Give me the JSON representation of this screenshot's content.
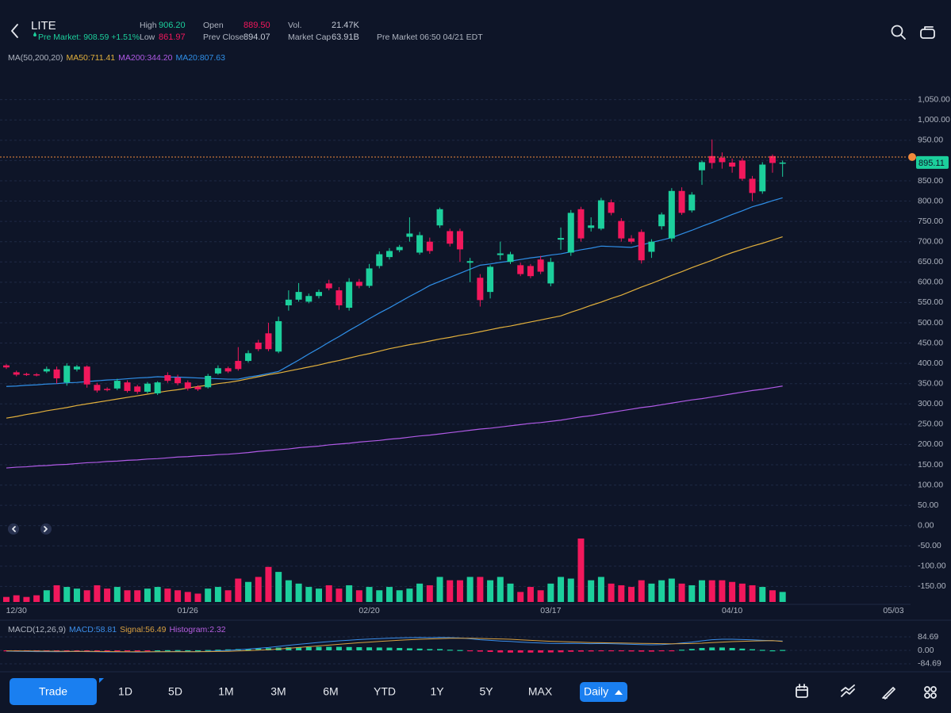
{
  "header": {
    "symbol": "LITE",
    "pre_market_label": "Pre Market:",
    "pre_market_price": 908.59,
    "pre_market_change": "+1.51%",
    "stats": [
      {
        "label": "High",
        "value": "906.20"
      },
      {
        "label": "Low",
        "value": "861.97"
      },
      {
        "label": "Open",
        "value": "889.50"
      },
      {
        "label": "Prev Close",
        "value": "894.07"
      },
      {
        "label": "Vol.",
        "value": "21.47K"
      },
      {
        "label": "Market Cap",
        "value": "63.91B"
      }
    ],
    "pre_market_time": "Pre Market 06:50 04/21 EDT"
  },
  "chart_data": [
    {
      "type": "candlestick",
      "indicator_label": "MA(50,200,20)",
      "up_color": "#1ccf9c",
      "down_color": "#f2185c",
      "last_price": 895.11,
      "grid": true,
      "ylim": [
        -200,
        1110
      ],
      "yticks": [
        {
          "value": -150,
          "label": "-150.00"
        },
        {
          "value": -100,
          "label": "-100.00"
        },
        {
          "value": -50,
          "label": "-50.00"
        },
        {
          "value": 0,
          "label": "0.00"
        },
        {
          "value": 50,
          "label": "50.00"
        },
        {
          "value": 100,
          "label": "100.00"
        },
        {
          "value": 150,
          "label": "150.00"
        },
        {
          "value": 200,
          "label": "200.00"
        },
        {
          "value": 250,
          "label": "250.00"
        },
        {
          "value": 300,
          "label": "300.00"
        },
        {
          "value": 350,
          "label": "350.00"
        },
        {
          "value": 400,
          "label": "400.00"
        },
        {
          "value": 450,
          "label": "450.00"
        },
        {
          "value": 500,
          "label": "500.00"
        },
        {
          "value": 550,
          "label": "550.00"
        },
        {
          "value": 600,
          "label": "600.00"
        },
        {
          "value": 650,
          "label": "650.00"
        },
        {
          "value": 700,
          "label": "700.00"
        },
        {
          "value": 750,
          "label": "750.00"
        },
        {
          "value": 800,
          "label": "800.00"
        },
        {
          "value": 850,
          "label": "850.00"
        },
        {
          "value": 900,
          "label": "900.00"
        },
        {
          "value": 950,
          "label": "950.00"
        },
        {
          "value": 1000,
          "label": "1,000.00"
        },
        {
          "value": 1050,
          "label": "1,050.00"
        }
      ],
      "categories": [
        null,
        "12/30",
        null,
        null,
        null,
        null,
        null,
        null,
        null,
        null,
        null,
        null,
        null,
        null,
        null,
        null,
        null,
        null,
        "01/26",
        null,
        null,
        null,
        null,
        null,
        null,
        null,
        null,
        null,
        null,
        null,
        null,
        null,
        null,
        null,
        null,
        null,
        "02/20",
        null,
        null,
        null,
        null,
        null,
        null,
        null,
        null,
        null,
        null,
        null,
        null,
        null,
        null,
        null,
        null,
        null,
        "03/17",
        null,
        null,
        null,
        null,
        null,
        null,
        null,
        null,
        null,
        null,
        null,
        null,
        null,
        null,
        null,
        null,
        null,
        "04/10",
        null,
        null,
        null,
        null,
        null,
        null,
        null,
        null,
        null,
        null,
        null,
        null,
        null,
        null,
        null,
        "05/03",
        null
      ],
      "open": [
        395,
        378,
        374,
        373,
        380,
        385,
        353,
        385,
        392,
        347,
        337,
        338,
        353,
        343,
        330,
        326,
        371,
        365,
        353,
        342,
        341,
        375,
        388,
        406,
        406,
        451,
        474,
        429,
        543,
        557,
        552,
        566,
        597,
        580,
        537,
        601,
        591,
        640,
        662,
        679,
        712,
        673,
        700,
        740,
        726,
        726,
        648,
        611,
        576,
        667,
        650,
        642,
        640,
        656,
        597,
        705,
        673,
        780,
        734,
        732,
        797,
        751,
        708,
        724,
        675,
        738,
        708,
        825,
        777,
        876,
        911,
        907,
        895,
        900,
        855,
        824,
        911,
        894,
        null,
        null,
        null,
        null,
        null,
        null,
        null,
        null,
        null,
        null,
        null,
        null
      ],
      "high": [
        398,
        382,
        377,
        376,
        392,
        392,
        400,
        396,
        395,
        352,
        341,
        362,
        358,
        347,
        354,
        356,
        378,
        372,
        358,
        346,
        374,
        395,
        392,
        440,
        432,
        458,
        500,
        515,
        580,
        598,
        572,
        582,
        606,
        588,
        610,
        608,
        645,
        676,
        684,
        692,
        760,
        724,
        710,
        784,
        732,
        732,
        660,
        620,
        642,
        700,
        675,
        648,
        645,
        665,
        660,
        735,
        778,
        786,
        760,
        808,
        804,
        758,
        716,
        730,
        706,
        772,
        832,
        834,
        822,
        900,
        952,
        920,
        905,
        906,
        862,
        896,
        915,
        900,
        null,
        null,
        null,
        null,
        null,
        null,
        null,
        null,
        null,
        null,
        null,
        null
      ],
      "low": [
        386,
        368,
        369,
        368,
        376,
        350,
        345,
        380,
        340,
        328,
        331,
        334,
        328,
        325,
        326,
        322,
        352,
        346,
        333,
        332,
        338,
        372,
        376,
        382,
        402,
        430,
        430,
        425,
        530,
        552,
        548,
        560,
        580,
        532,
        530,
        585,
        586,
        634,
        656,
        674,
        700,
        668,
        670,
        734,
        688,
        650,
        600,
        540,
        560,
        655,
        645,
        615,
        610,
        620,
        590,
        680,
        665,
        700,
        725,
        728,
        765,
        700,
        695,
        646,
        660,
        730,
        700,
        766,
        772,
        840,
        880,
        880,
        870,
        850,
        800,
        818,
        870,
        860,
        null,
        null,
        null,
        null,
        null,
        null,
        null,
        null,
        null,
        null,
        null,
        null
      ],
      "close": [
        390,
        372,
        372,
        371,
        386,
        363,
        394,
        392,
        348,
        333,
        335,
        357,
        332,
        330,
        350,
        353,
        357,
        351,
        338,
        336,
        369,
        388,
        380,
        386,
        425,
        435,
        435,
        504,
        557,
        576,
        566,
        576,
        585,
        543,
        601,
        591,
        634,
        669,
        677,
        687,
        720,
        716,
        677,
        780,
        695,
        681,
        652,
        556,
        638,
        671,
        669,
        620,
        615,
        626,
        650,
        709,
        771,
        708,
        740,
        802,
        771,
        708,
        700,
        654,
        700,
        767,
        825,
        771,
        816,
        896,
        894,
        896,
        885,
        855,
        820,
        890,
        894,
        895,
        null,
        null,
        null,
        null,
        null,
        null,
        null,
        null,
        null,
        null,
        null,
        null
      ],
      "volume": [
        6,
        8,
        6,
        8,
        14,
        20,
        18,
        16,
        14,
        20,
        16,
        18,
        14,
        14,
        16,
        18,
        16,
        14,
        12,
        10,
        16,
        18,
        14,
        28,
        24,
        30,
        42,
        36,
        26,
        22,
        18,
        16,
        20,
        16,
        20,
        14,
        18,
        14,
        18,
        14,
        16,
        22,
        20,
        30,
        26,
        26,
        30,
        30,
        26,
        30,
        22,
        12,
        18,
        14,
        22,
        30,
        28,
        76,
        26,
        30,
        22,
        20,
        18,
        26,
        22,
        26,
        28,
        22,
        20,
        26,
        26,
        26,
        24,
        22,
        20,
        18,
        14,
        12,
        null,
        null,
        null,
        null,
        null,
        null,
        null,
        null,
        null,
        null,
        null,
        null
      ],
      "series": [
        {
          "name": "MA50:711.41",
          "color": "#e2b03c",
          "values": [
            265,
            269,
            274,
            278,
            283,
            287,
            291,
            296,
            300,
            304,
            308,
            312,
            316,
            320,
            324,
            328,
            332,
            335,
            339,
            343,
            346,
            350,
            353,
            357,
            362,
            367,
            372,
            376,
            381,
            386,
            391,
            396,
            402,
            407,
            413,
            419,
            424,
            430,
            436,
            441,
            446,
            450,
            455,
            460,
            464,
            469,
            473,
            478,
            483,
            488,
            492,
            497,
            502,
            507,
            512,
            517,
            526,
            534,
            543,
            551,
            560,
            568,
            578,
            588,
            597,
            607,
            617,
            626,
            636,
            645,
            654,
            664,
            673,
            681,
            689,
            696,
            704,
            712,
            null,
            null,
            null,
            null,
            null,
            null,
            null,
            null,
            null,
            null,
            null,
            null
          ]
        },
        {
          "name": "MA200:344.20",
          "color": "#b05ae6",
          "values": [
            142,
            144,
            145,
            147,
            148,
            150,
            151,
            153,
            155,
            156,
            158,
            159,
            161,
            162,
            164,
            165,
            167,
            169,
            170,
            172,
            173,
            175,
            176,
            178,
            180,
            183,
            185,
            187,
            189,
            192,
            194,
            196,
            199,
            201,
            203,
            206,
            208,
            210,
            213,
            215,
            218,
            221,
            223,
            226,
            229,
            232,
            235,
            238,
            240,
            243,
            246,
            249,
            252,
            254,
            257,
            260,
            264,
            268,
            271,
            275,
            279,
            283,
            287,
            291,
            294,
            298,
            302,
            306,
            310,
            313,
            317,
            321,
            325,
            329,
            333,
            336,
            340,
            344,
            null,
            null,
            null,
            null,
            null,
            null,
            null,
            null,
            null,
            null,
            null,
            null
          ]
        },
        {
          "name": "MA20:807.63",
          "color": "#2f8fe8",
          "values": [
            343,
            344,
            346,
            347,
            349,
            350,
            352,
            353,
            355,
            357,
            359,
            360,
            362,
            364,
            365,
            367,
            366,
            366,
            365,
            364,
            363,
            362,
            361,
            361,
            366,
            370,
            375,
            380,
            394,
            408,
            423,
            437,
            452,
            466,
            481,
            495,
            510,
            524,
            537,
            551,
            565,
            578,
            592,
            602,
            612,
            622,
            632,
            642,
            645,
            649,
            652,
            656,
            660,
            663,
            667,
            670,
            675,
            680,
            684,
            689,
            688,
            687,
            686,
            692,
            698,
            704,
            710,
            719,
            728,
            738,
            747,
            757,
            767,
            776,
            786,
            793,
            801,
            808,
            null,
            null,
            null,
            null,
            null,
            null,
            null,
            null,
            null,
            null,
            null,
            null
          ]
        }
      ]
    },
    {
      "type": "macd",
      "title": "MACD(12,26,9)",
      "ylim": [
        -100,
        100
      ],
      "yticks": [
        84.69,
        {
          "value": 0,
          "label": "0.00"
        },
        -84.69
      ],
      "series": [
        {
          "name": "MACD:58.81",
          "color": "#3b8eea",
          "values": [
            -5,
            -6,
            -7,
            -8,
            -8,
            -9,
            -8,
            -7,
            -8,
            -9,
            -10,
            -10,
            -10,
            -11,
            -10,
            -9,
            -8,
            -7,
            -8,
            -8,
            -6,
            -3,
            0,
            4,
            8,
            13,
            18,
            25,
            32,
            38,
            44,
            50,
            55,
            60,
            64,
            68,
            71,
            74,
            77,
            79,
            80,
            81,
            80,
            82,
            80,
            78,
            73,
            67,
            63,
            59,
            56,
            52,
            49,
            46,
            44,
            43,
            44,
            43,
            42,
            43,
            42,
            40,
            38,
            36,
            35,
            36,
            40,
            46,
            52,
            60,
            67,
            70,
            70,
            68,
            66,
            63,
            61,
            58.81
          ]
        },
        {
          "name": "Signal:56.49",
          "color": "#d9a040",
          "values": [
            -3,
            -3.5,
            -4,
            -4.5,
            -5,
            -5.5,
            -6,
            -6,
            -6.5,
            -7,
            -7.5,
            -8,
            -8.5,
            -9,
            -9,
            -9,
            -9,
            -8.5,
            -8.5,
            -8.5,
            -8,
            -7,
            -6,
            -4,
            -2,
            1,
            4,
            8,
            13,
            18,
            23,
            28,
            33,
            38,
            43,
            48,
            52,
            56,
            60,
            64,
            67,
            70,
            72,
            74,
            76,
            76,
            76,
            75,
            73,
            72,
            70,
            66,
            63,
            60,
            57,
            55,
            53,
            51,
            49,
            48,
            47,
            46,
            45,
            44,
            43,
            42,
            41,
            42,
            43,
            45,
            49,
            52,
            55,
            57,
            59,
            60,
            61,
            56.49
          ]
        }
      ],
      "histogram": {
        "name": "Histogram:2.32",
        "color": "#b65ee0",
        "values": [
          -2,
          -2.5,
          -3,
          -3.5,
          -3,
          -3.5,
          -2,
          -1,
          -1.5,
          -2,
          -2.5,
          -2,
          -1.5,
          -2,
          -1,
          0,
          1,
          1.5,
          0.5,
          0.5,
          2,
          4,
          6,
          8,
          10,
          12,
          14,
          17,
          19,
          20,
          21,
          22,
          22,
          22,
          21,
          20,
          19,
          18,
          17,
          15,
          13,
          11,
          8,
          8,
          4,
          2,
          -3,
          -8,
          -10,
          -13,
          -14,
          -14,
          -14,
          -14,
          -13,
          -12,
          -9,
          -8,
          -7,
          -5,
          -5,
          -6,
          -7,
          -8,
          -8,
          -6,
          -1,
          4,
          9,
          15,
          18,
          18,
          15,
          11,
          7,
          3,
          0,
          2.32
        ]
      }
    }
  ],
  "controls": {
    "trade": "Trade",
    "ranges": [
      "1D",
      "5D",
      "1M",
      "3M",
      "6M",
      "YTD",
      "1Y",
      "5Y",
      "MAX"
    ],
    "interval": "Daily"
  }
}
